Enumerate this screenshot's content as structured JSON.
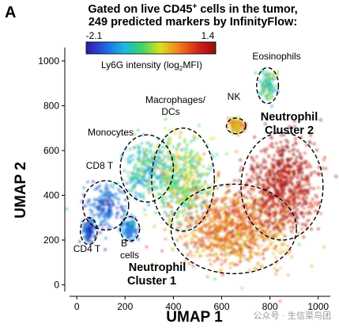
{
  "panel_label": "A",
  "watermark": "公众号 · 生信菜鸟团",
  "chart_data": {
    "type": "scatter",
    "title_line1": "Gated on live CD45",
    "title_sup": "+",
    "title_line1_end": " cells in the tumor,",
    "title_line2": "249 predicted markers by InfinityFlow:",
    "xlabel": "UMAP 1",
    "ylabel": "UMAP 2",
    "xlim": [
      -30,
      1050
    ],
    "ylim": [
      -30,
      1060
    ],
    "x_ticks": [
      0,
      200,
      400,
      600,
      800,
      1000
    ],
    "y_ticks": [
      0,
      200,
      400,
      600,
      800,
      1000
    ],
    "colorbar": {
      "label_pre": "Ly6G intensity (log",
      "label_sub": "2",
      "label_post": "MFI)",
      "min_label": "-2.1",
      "max_label": "1.4",
      "min": -2.1,
      "max": 1.4,
      "colors": [
        "#2c1aa6",
        "#1f5fe0",
        "#18b6e6",
        "#3ad36a",
        "#d9e21c",
        "#f0801c",
        "#d4261c",
        "#8e0d10"
      ]
    },
    "clusters": [
      {
        "label": "CD4 T",
        "center": [
          50,
          240
        ],
        "spread": [
          35,
          60
        ],
        "ly6g": -1.7
      },
      {
        "label": "CD8 T",
        "center": [
          120,
          355
        ],
        "spread": [
          95,
          110
        ],
        "ly6g": -1.6
      },
      {
        "label": "B cells",
        "center": [
          220,
          250
        ],
        "spread": [
          40,
          55
        ],
        "ly6g": -1.4
      },
      {
        "label": "Monocytes",
        "center": [
          290,
          520
        ],
        "spread": [
          110,
          150
        ],
        "ly6g": -0.9
      },
      {
        "label": "Macrophages/ DCs",
        "center": [
          440,
          470
        ],
        "spread": [
          130,
          230
        ],
        "ly6g": -0.4
      },
      {
        "label": "NK",
        "center": [
          660,
          710
        ],
        "spread": [
          40,
          35
        ],
        "ly6g": 0.2
      },
      {
        "label": "Eosinophils",
        "center": [
          790,
          890
        ],
        "spread": [
          45,
          80
        ],
        "ly6g": -0.8
      },
      {
        "label": "Neutrophil Cluster 1",
        "center": [
          650,
          250
        ],
        "spread": [
          260,
          200
        ],
        "ly6g": 0.5
      },
      {
        "label": "Neutrophil Cluster 2",
        "center": [
          850,
          440
        ],
        "spread": [
          170,
          240
        ],
        "ly6g": 1.2
      }
    ]
  },
  "cluster_labels": {
    "eos": "Eosinophils",
    "nk": "NK",
    "mac1": "Macrophages/",
    "mac2": "DCs",
    "mono": "Monocytes",
    "cd8": "CD8 T",
    "cd4": "CD4 T",
    "b1": "B",
    "b2": "cells",
    "n1a": "Neutrophil",
    "n1b": "Cluster 1",
    "n2a": "Neutrophil",
    "n2b": "Cluster 2"
  }
}
